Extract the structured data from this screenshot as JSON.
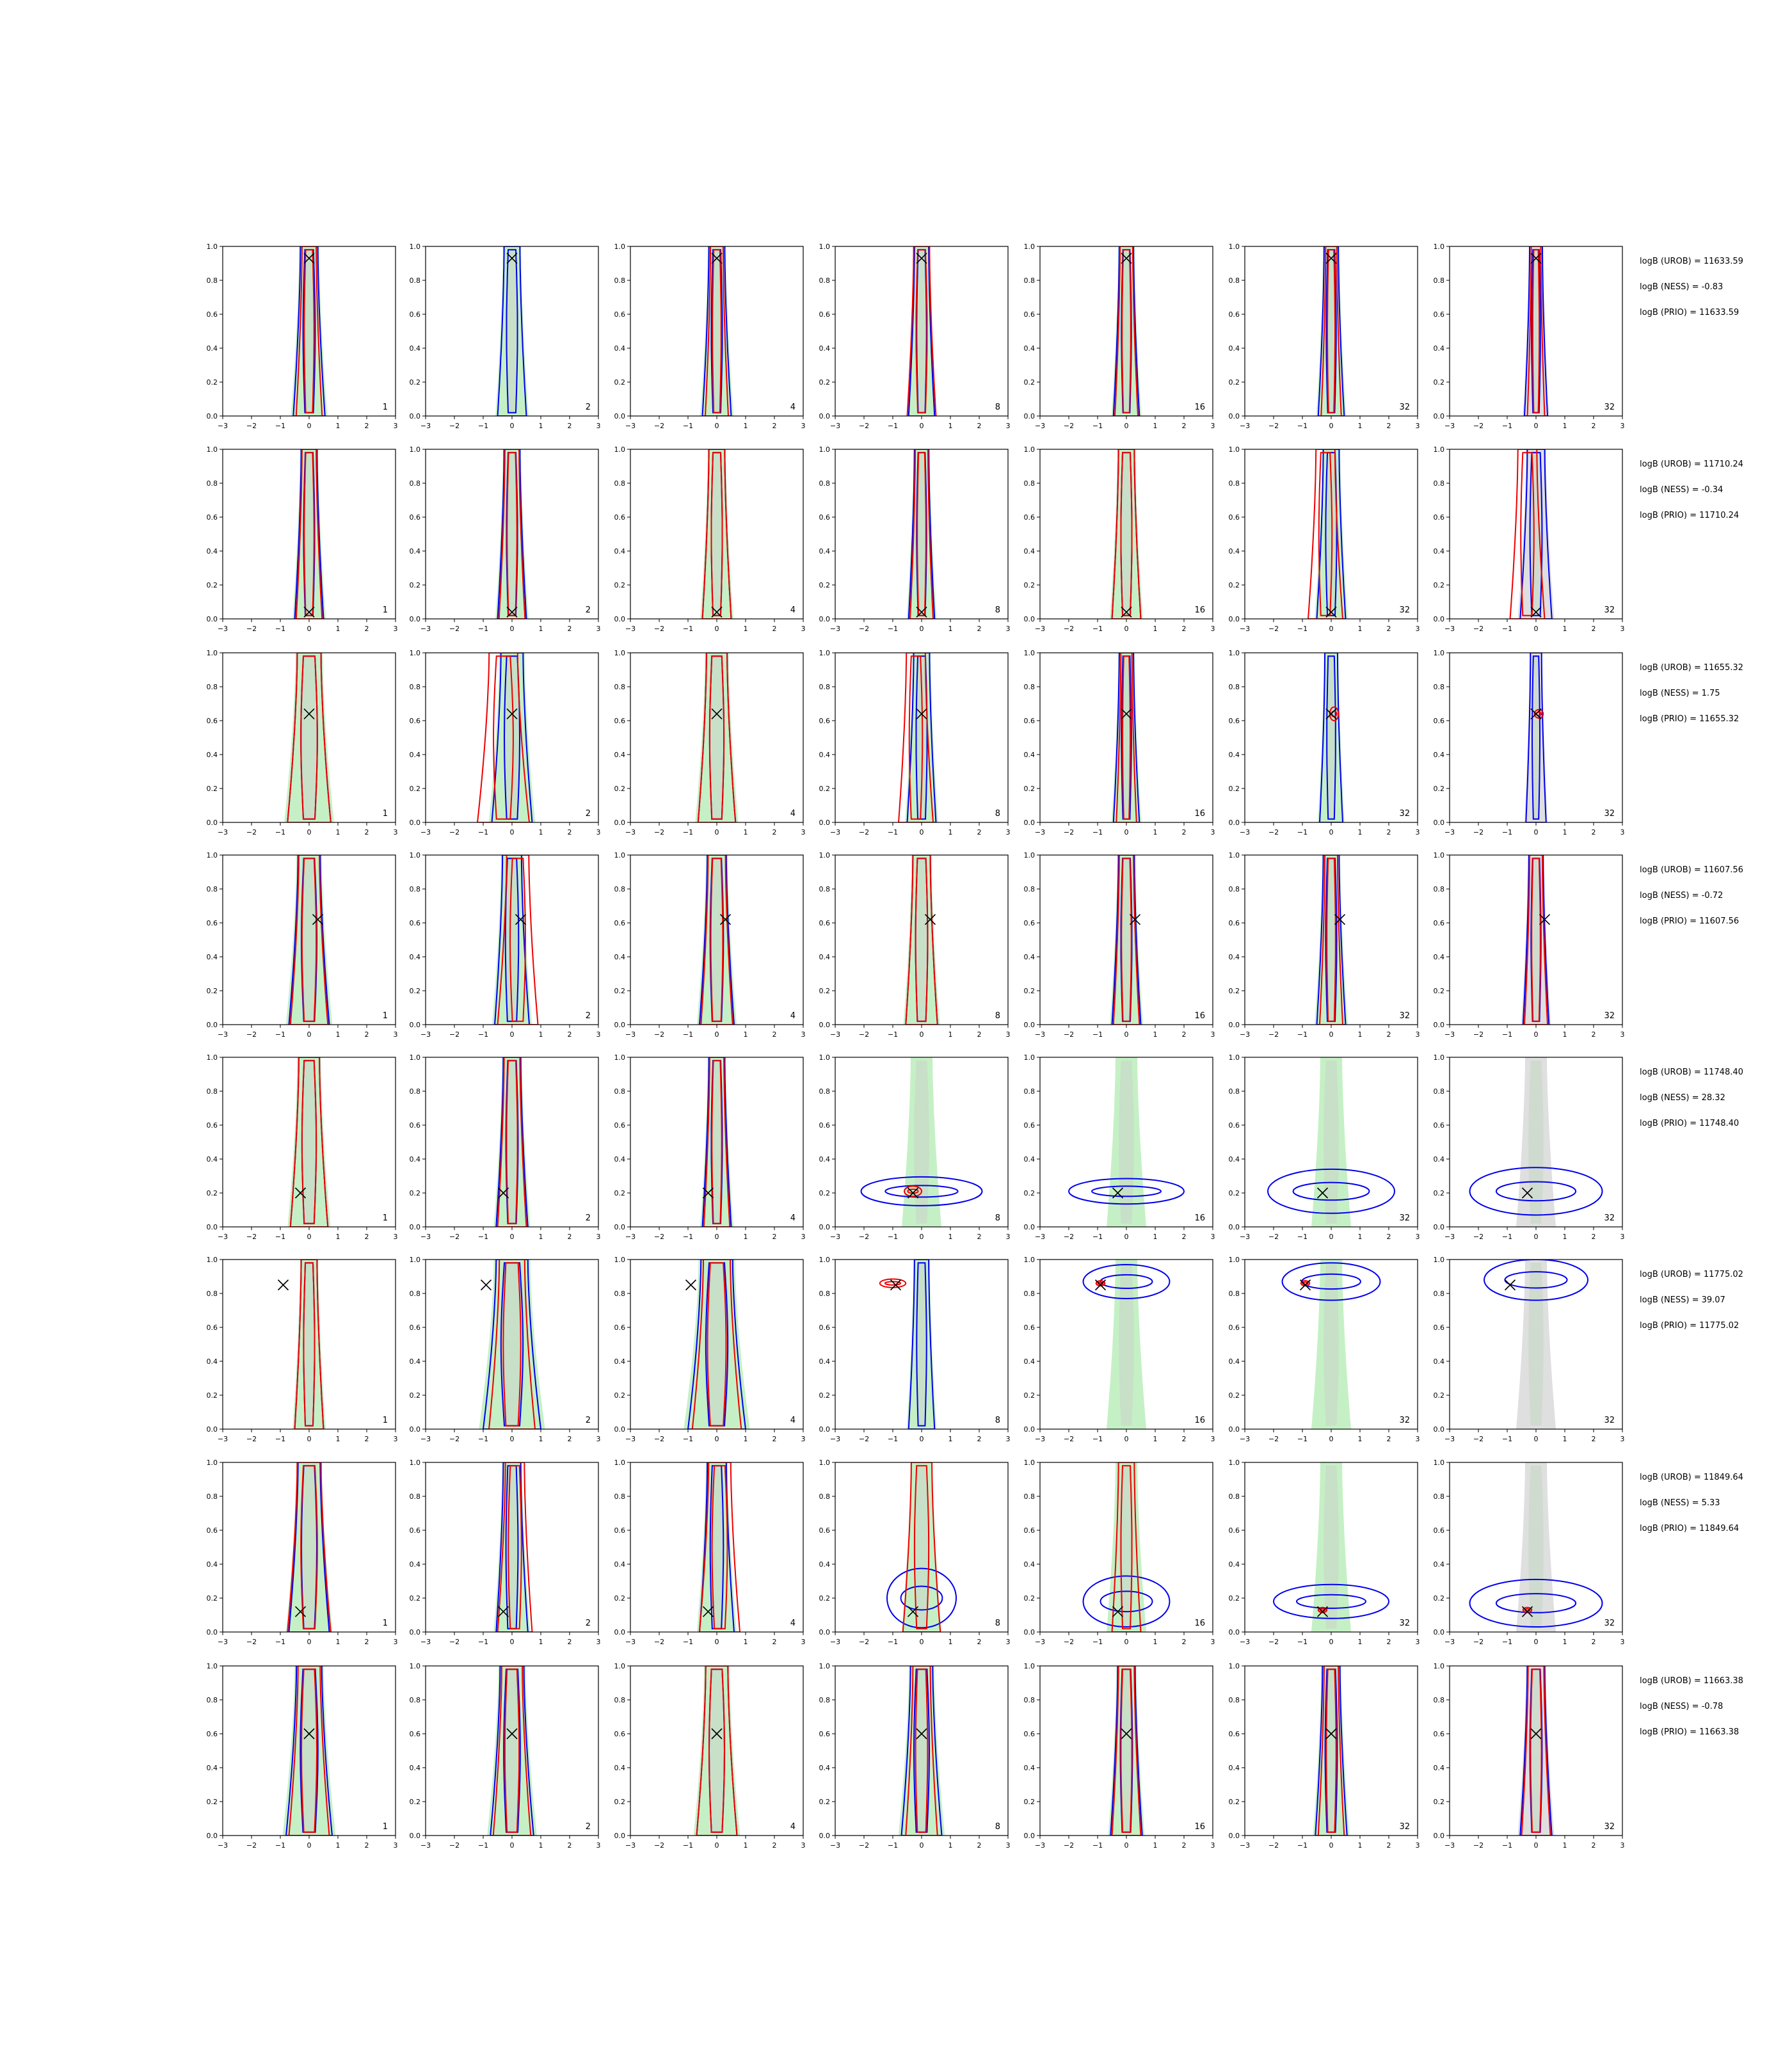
{
  "chart_data": {
    "type": "contour-grid",
    "xlim": [
      -3,
      3
    ],
    "ylim": [
      0.0,
      1.0
    ],
    "x_ticks": [
      "−3",
      "−2",
      "−1",
      "0",
      "1",
      "2",
      "3"
    ],
    "y_ticks": [
      "0.0",
      "0.2",
      "0.4",
      "0.6",
      "0.8",
      "1.0"
    ],
    "column_annotations": [
      "1",
      "2",
      "4",
      "8",
      "16",
      "32",
      "32"
    ],
    "colors": {
      "filled_green": "#bfeebf",
      "filled_gray": "#dcdcdc",
      "contour_blue": "#0000ee",
      "contour_red": "#ee0000",
      "marker": "#000000"
    },
    "rows": [
      {
        "truth": {
          "x": 0.0,
          "y": 0.93
        },
        "logB_UROB": "logB (UROB) = 11633.59",
        "logB_NESS": "logB (NESS) = -0.83",
        "logB_PRIO": "logB (PRIO) = 11633.59",
        "panels": [
          {
            "blue": {
              "cx": 0.0,
              "cy": 0.5,
              "w": 1.1
            },
            "red": {
              "cx": 0.0,
              "cy": 0.5,
              "w": 0.9
            }
          },
          {
            "blue": {
              "cx": 0.0,
              "cy": 0.5,
              "w": 1.0
            },
            "red": null
          },
          {
            "blue": {
              "cx": 0.0,
              "cy": 0.5,
              "w": 1.0
            },
            "red": {
              "cx": 0.0,
              "cy": 0.5,
              "w": 0.8
            }
          },
          {
            "blue": {
              "cx": 0.0,
              "cy": 0.5,
              "w": 0.9
            },
            "red": {
              "cx": 0.0,
              "cy": 0.5,
              "w": 1.0
            }
          },
          {
            "blue": {
              "cx": 0.0,
              "cy": 0.5,
              "w": 0.9
            },
            "red": {
              "cx": 0.0,
              "cy": 0.5,
              "w": 0.8
            }
          },
          {
            "blue": {
              "cx": 0.0,
              "cy": 0.5,
              "w": 0.9
            },
            "red": {
              "cx": 0.0,
              "cy": 0.5,
              "w": 0.7
            }
          },
          {
            "blue": {
              "cx": 0.0,
              "cy": 0.5,
              "w": 0.8
            },
            "red": {
              "cx": 0.0,
              "cy": 0.5,
              "w": 0.6
            }
          }
        ]
      },
      {
        "truth": {
          "x": 0.0,
          "y": 0.04
        },
        "logB_UROB": "logB (UROB) = 11710.24",
        "logB_NESS": "logB (NESS) = -0.34",
        "logB_PRIO": "logB (PRIO) = 11710.24",
        "panels": [
          {
            "blue": {
              "cx": 0.0,
              "cy": 0.5,
              "w": 1.0
            },
            "red": {
              "cx": 0.0,
              "cy": 0.5,
              "w": 0.9
            }
          },
          {
            "blue": {
              "cx": 0.0,
              "cy": 0.5,
              "w": 1.0
            },
            "red": {
              "cx": 0.0,
              "cy": 0.5,
              "w": 0.9
            }
          },
          {
            "blue": {
              "cx": 0.0,
              "cy": 0.5,
              "w": 1.0
            },
            "red": {
              "cx": 0.0,
              "cy": 0.5,
              "w": 1.0
            }
          },
          {
            "blue": {
              "cx": 0.0,
              "cy": 0.5,
              "w": 0.9
            },
            "red": {
              "cx": 0.0,
              "cy": 0.5,
              "w": 0.8
            }
          },
          {
            "blue": {
              "cx": 0.0,
              "cy": 0.5,
              "w": 1.0
            },
            "red": {
              "cx": 0.0,
              "cy": 0.5,
              "w": 1.0
            }
          },
          {
            "blue": {
              "cx": 0.0,
              "cy": 0.5,
              "w": 1.0
            },
            "red": {
              "cx": -0.2,
              "cy": 0.4,
              "w": 1.2
            }
          },
          {
            "blue": {
              "cx": 0.0,
              "cy": 0.5,
              "w": 1.1
            },
            "red": {
              "cx": -0.3,
              "cy": 0.4,
              "w": 1.2
            }
          }
        ]
      },
      {
        "truth": {
          "x": 0.0,
          "y": 0.64
        },
        "logB_UROB": "logB (UROB) = 11655.32",
        "logB_NESS": "logB (NESS) = 1.75",
        "logB_PRIO": "logB (PRIO) = 11655.32",
        "panels": [
          {
            "blue": {
              "cx": 0.0,
              "cy": 0.5,
              "w": 1.5
            },
            "red": {
              "cx": 0.0,
              "cy": 0.5,
              "w": 1.5
            }
          },
          {
            "blue": {
              "cx": 0.0,
              "cy": 0.5,
              "w": 1.4
            },
            "red": {
              "cx": -0.3,
              "cy": 0.4,
              "w": 1.8
            }
          },
          {
            "blue": {
              "cx": 0.0,
              "cy": 0.5,
              "w": 1.3
            },
            "red": {
              "cx": 0.0,
              "cy": 0.55,
              "w": 1.3
            }
          },
          {
            "blue": {
              "cx": 0.0,
              "cy": 0.5,
              "w": 1.0
            },
            "red": {
              "cx": -0.2,
              "cy": 0.4,
              "w": 1.2
            }
          },
          {
            "blue": {
              "cx": 0.0,
              "cy": 0.5,
              "w": 0.9
            },
            "red": {
              "cx": 0.0,
              "cy": 0.5,
              "w": 0.7
            }
          },
          {
            "blue": {
              "cx": 0.0,
              "cy": 0.5,
              "w": 0.8
            },
            "red": {
              "cx": 0.1,
              "cy": 0.64,
              "w": 0.3,
              "h": 0.08
            }
          },
          {
            "blue": {
              "cx": 0.0,
              "cy": 0.5,
              "w": 0.7
            },
            "red": {
              "cx": 0.1,
              "cy": 0.64,
              "w": 0.3,
              "h": 0.05
            }
          }
        ]
      },
      {
        "truth": {
          "x": 0.3,
          "y": 0.62
        },
        "logB_UROB": "logB (UROB) = 11607.56",
        "logB_NESS": "logB (NESS) = -0.72",
        "logB_PRIO": "logB (PRIO) = 11607.56",
        "panels": [
          {
            "blue": {
              "cx": 0.0,
              "cy": 0.5,
              "w": 1.4
            },
            "red": {
              "cx": 0.0,
              "cy": 0.5,
              "w": 1.3
            }
          },
          {
            "blue": {
              "cx": 0.0,
              "cy": 0.5,
              "w": 1.2
            },
            "red": {
              "cx": 0.2,
              "cy": 0.5,
              "w": 1.4
            }
          },
          {
            "blue": {
              "cx": 0.0,
              "cy": 0.5,
              "w": 1.2
            },
            "red": {
              "cx": 0.0,
              "cy": 0.5,
              "w": 1.1
            }
          },
          {
            "blue": {
              "cx": 0.0,
              "cy": 0.5,
              "w": 1.1
            },
            "red": {
              "cx": 0.0,
              "cy": 0.5,
              "w": 1.1
            }
          },
          {
            "blue": {
              "cx": 0.0,
              "cy": 0.5,
              "w": 1.0
            },
            "red": {
              "cx": 0.0,
              "cy": 0.5,
              "w": 0.9
            }
          },
          {
            "blue": {
              "cx": 0.0,
              "cy": 0.5,
              "w": 1.0
            },
            "red": {
              "cx": 0.0,
              "cy": 0.5,
              "w": 0.8
            }
          },
          {
            "blue": {
              "cx": 0.0,
              "cy": 0.5,
              "w": 0.9
            },
            "red": {
              "cx": 0.0,
              "cy": 0.5,
              "w": 0.8
            }
          }
        ]
      },
      {
        "truth": {
          "x": -0.3,
          "y": 0.2
        },
        "logB_UROB": "logB (UROB) = 11748.40",
        "logB_NESS": "logB (NESS) = 28.32",
        "logB_PRIO": "logB (PRIO) = 11748.40",
        "panels": [
          {
            "blue": {
              "cx": 0.0,
              "cy": 0.5,
              "w": 1.3
            },
            "red": {
              "cx": 0.0,
              "cy": 0.5,
              "w": 1.3
            }
          },
          {
            "blue": {
              "cx": 0.0,
              "cy": 0.5,
              "w": 1.1
            },
            "red": {
              "cx": 0.0,
              "cy": 0.5,
              "w": 1.0
            }
          },
          {
            "blue": {
              "cx": 0.0,
              "cy": 0.5,
              "w": 1.0
            },
            "red": {
              "cx": 0.0,
              "cy": 0.5,
              "w": 0.9
            }
          },
          {
            "blue": {
              "cx": 0.0,
              "cy": 0.21,
              "w": 4.2,
              "h": 0.17,
              "flat": true
            },
            "red": {
              "cx": -0.3,
              "cy": 0.21,
              "w": 0.6,
              "h": 0.06,
              "flat": true
            }
          },
          {
            "blue": {
              "cx": 0.0,
              "cy": 0.21,
              "w": 4.0,
              "h": 0.15,
              "flat": true
            },
            "red": null
          },
          {
            "blue": {
              "cx": 0.0,
              "cy": 0.21,
              "w": 4.4,
              "h": 0.26,
              "flat": true
            },
            "red": null
          },
          {
            "blue": {
              "cx": 0.0,
              "cy": 0.21,
              "w": 4.6,
              "h": 0.28,
              "flat": true
            },
            "red": null
          }
        ]
      },
      {
        "truth": {
          "x": -0.9,
          "y": 0.85
        },
        "logB_UROB": "logB (UROB) = 11775.02",
        "logB_NESS": "logB (NESS) = 39.07",
        "logB_PRIO": "logB (PRIO) = 11775.02",
        "panels": [
          {
            "blue": {
              "cx": 0.0,
              "cy": 0.5,
              "w": 1.0
            },
            "red": {
              "cx": 0.0,
              "cy": 0.5,
              "w": 1.0
            }
          },
          {
            "blue": {
              "cx": 0.0,
              "cy": 0.45,
              "w": 2.0
            },
            "red": {
              "cx": 0.0,
              "cy": 0.45,
              "w": 1.6
            }
          },
          {
            "blue": {
              "cx": 0.0,
              "cy": 0.4,
              "w": 2.0
            },
            "red": {
              "cx": 0.0,
              "cy": 0.45,
              "w": 1.7
            }
          },
          {
            "blue": {
              "cx": 0.0,
              "cy": 0.5,
              "w": 0.9
            },
            "red": {
              "cx": -1.0,
              "cy": 0.86,
              "w": 0.9,
              "h": 0.05,
              "flat": true
            }
          },
          {
            "blue": {
              "cx": 0.0,
              "cy": 0.87,
              "w": 3.0,
              "h": 0.2,
              "flat": true
            },
            "red": {
              "cx": -0.9,
              "cy": 0.86,
              "w": 0.3,
              "h": 0.03,
              "flat": true
            }
          },
          {
            "blue": {
              "cx": 0.0,
              "cy": 0.87,
              "w": 3.4,
              "h": 0.22,
              "flat": true
            },
            "red": {
              "cx": -0.9,
              "cy": 0.86,
              "w": 0.3,
              "h": 0.03,
              "flat": true
            }
          },
          {
            "blue": {
              "cx": 0.0,
              "cy": 0.88,
              "w": 3.6,
              "h": 0.24,
              "flat": true
            },
            "red": null
          }
        ]
      },
      {
        "truth": {
          "x": -0.3,
          "y": 0.12
        },
        "logB_UROB": "logB (UROB) = 11849.64",
        "logB_NESS": "logB (NESS) = 5.33",
        "logB_PRIO": "logB (PRIO) = 11849.64",
        "panels": [
          {
            "blue": {
              "cx": 0.0,
              "cy": 0.5,
              "w": 1.4
            },
            "red": {
              "cx": 0.0,
              "cy": 0.5,
              "w": 1.5
            }
          },
          {
            "blue": {
              "cx": 0.0,
              "cy": 0.5,
              "w": 1.1
            },
            "red": {
              "cx": 0.1,
              "cy": 0.5,
              "w": 1.2
            }
          },
          {
            "blue": {
              "cx": 0.0,
              "cy": 0.5,
              "w": 1.2
            },
            "red": {
              "cx": 0.1,
              "cy": 0.5,
              "w": 1.4
            }
          },
          {
            "blue": {
              "cx": 0.0,
              "cy": 0.2,
              "w": 2.4,
              "h": 0.35,
              "flat": true
            },
            "red": {
              "cx": 0.0,
              "cy": 0.5,
              "w": 1.3
            }
          },
          {
            "blue": {
              "cx": 0.0,
              "cy": 0.18,
              "w": 3.0,
              "h": 0.3,
              "flat": true
            },
            "red": {
              "cx": 0.0,
              "cy": 0.45,
              "w": 1.0
            }
          },
          {
            "blue": {
              "cx": 0.0,
              "cy": 0.18,
              "w": 4.0,
              "h": 0.2,
              "flat": true
            },
            "red": {
              "cx": -0.3,
              "cy": 0.13,
              "w": 0.3,
              "h": 0.03,
              "flat": true
            }
          },
          {
            "blue": {
              "cx": 0.0,
              "cy": 0.17,
              "w": 4.6,
              "h": 0.28,
              "flat": true
            },
            "red": {
              "cx": -0.3,
              "cy": 0.13,
              "w": 0.3,
              "h": 0.03,
              "flat": true
            }
          }
        ]
      },
      {
        "truth": {
          "x": 0.0,
          "y": 0.6
        },
        "logB_UROB": "logB (UROB) = 11663.38",
        "logB_NESS": "logB (NESS) = -0.78",
        "logB_PRIO": "logB (PRIO) = 11663.38",
        "panels": [
          {
            "blue": {
              "cx": 0.0,
              "cy": 0.5,
              "w": 1.6
            },
            "red": {
              "cx": 0.0,
              "cy": 0.5,
              "w": 1.4
            }
          },
          {
            "blue": {
              "cx": 0.0,
              "cy": 0.5,
              "w": 1.5
            },
            "red": {
              "cx": 0.0,
              "cy": 0.5,
              "w": 1.3
            }
          },
          {
            "blue": {
              "cx": 0.0,
              "cy": 0.5,
              "w": 1.4
            },
            "red": {
              "cx": 0.0,
              "cy": 0.5,
              "w": 1.4
            }
          },
          {
            "blue": {
              "cx": 0.0,
              "cy": 0.5,
              "w": 1.4
            },
            "red": {
              "cx": 0.0,
              "cy": 0.5,
              "w": 1.1
            }
          },
          {
            "blue": {
              "cx": 0.0,
              "cy": 0.5,
              "w": 1.1
            },
            "red": {
              "cx": 0.0,
              "cy": 0.5,
              "w": 1.0
            }
          },
          {
            "blue": {
              "cx": 0.0,
              "cy": 0.5,
              "w": 1.1
            },
            "red": {
              "cx": 0.0,
              "cy": 0.5,
              "w": 0.9
            }
          },
          {
            "blue": {
              "cx": 0.0,
              "cy": 0.5,
              "w": 1.1
            },
            "red": {
              "cx": 0.0,
              "cy": 0.5,
              "w": 1.0
            }
          }
        ]
      }
    ]
  }
}
